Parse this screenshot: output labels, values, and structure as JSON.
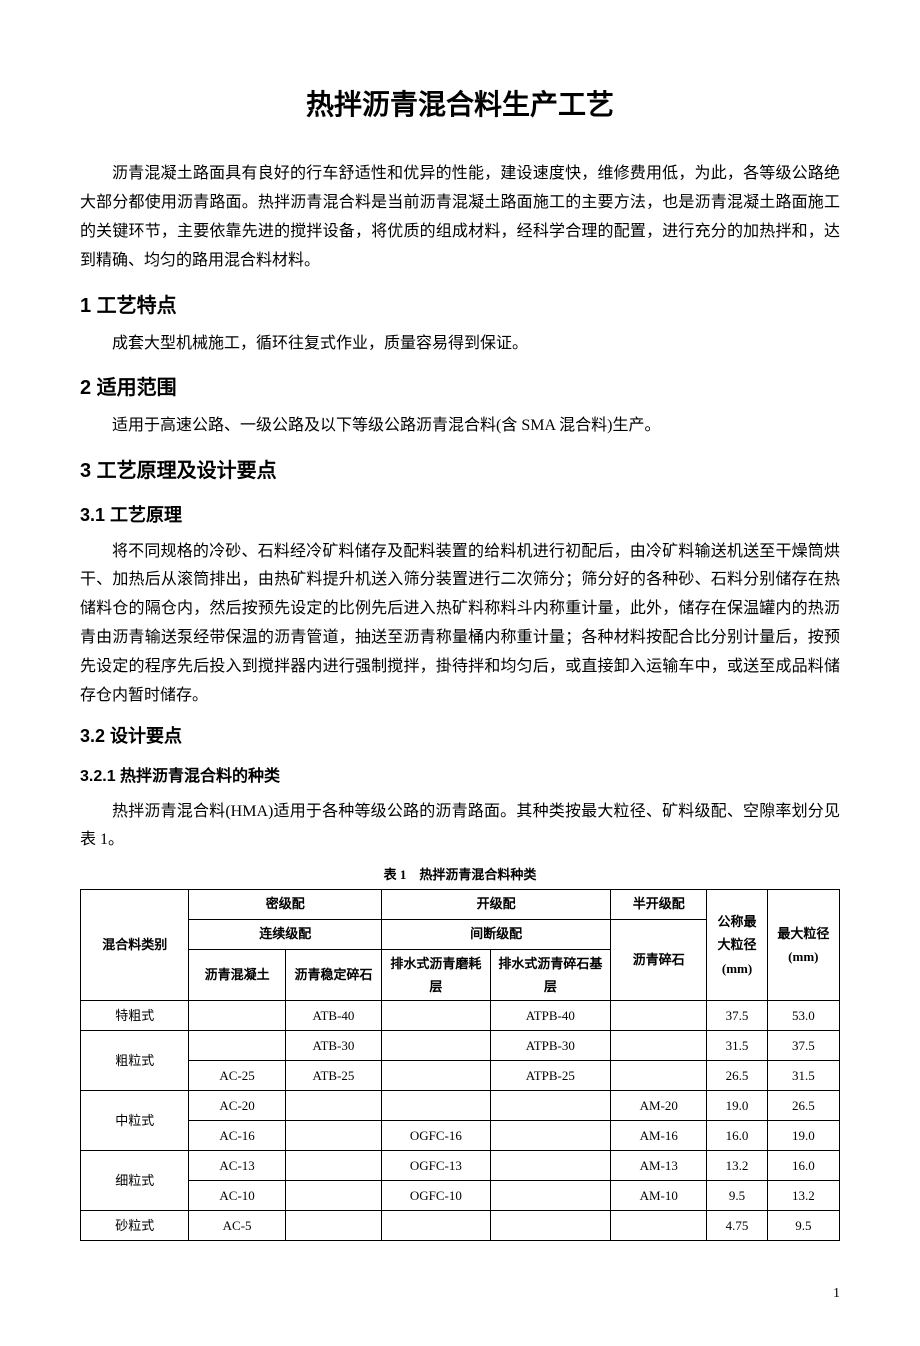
{
  "title": "热拌沥青混合料生产工艺",
  "intro": "沥青混凝土路面具有良好的行车舒适性和优异的性能，建设速度快，维修费用低，为此，各等级公路绝大部分都使用沥青路面。热拌沥青混合料是当前沥青混凝土路面施工的主要方法，也是沥青混凝土路面施工的关键环节，主要依靠先进的搅拌设备，将优质的组成材料，经科学合理的配置，进行充分的加热拌和，达到精确、均匀的路用混合料材料。",
  "s1": {
    "heading": "1 工艺特点",
    "body": "成套大型机械施工，循环往复式作业，质量容易得到保证。"
  },
  "s2": {
    "heading": "2 适用范围",
    "body": "适用于高速公路、一级公路及以下等级公路沥青混合料(含 SMA 混合料)生产。"
  },
  "s3": {
    "heading": "3 工艺原理及设计要点",
    "ss31": {
      "heading": "3.1 工艺原理",
      "body": "将不同规格的冷砂、石料经冷矿料储存及配料装置的给料机进行初配后，由冷矿料输送机送至干燥筒烘干、加热后从滚筒排出，由热矿料提升机送入筛分装置进行二次筛分；筛分好的各种砂、石料分别储存在热储料仓的隔仓内，然后按预先设定的比例先后进入热矿料称料斗内称重计量，此外，储存在保温罐内的热沥青由沥青输送泵经带保温的沥青管道，抽送至沥青称量桶内称重计量；各种材料按配合比分别计量后，按预先设定的程序先后投入到搅拌器内进行强制搅拌，掛待拌和均匀后，或直接卸入运输车中，或送至成品料储存仓内暂时储存。"
    },
    "ss32": {
      "heading": "3.2 设计要点",
      "sss321": {
        "heading": "3.2.1 热拌沥青混合料的种类",
        "body": "热拌沥青混合料(HMA)适用于各种等级公路的沥青路面。其种类按最大粒径、矿料级配、空隙率划分见表 1。"
      }
    }
  },
  "table1": {
    "caption": "表 1　热拌沥青混合料种类",
    "headers": {
      "type_col": "混合料类别",
      "dense": "密级配",
      "open": "开级配",
      "semi_open": "半开级配",
      "nominal": "公称最大粒径(mm)",
      "max_size": "最大粒径(mm)",
      "continuous": "连续级配",
      "gap": "间断级配",
      "ac": "沥青混凝土",
      "atb": "沥青稳定碎石",
      "ogfc": "排水式沥青磨耗层",
      "atpb": "排水式沥青碎石基层",
      "am": "沥青碎石"
    },
    "rows": [
      {
        "cat": "特粗式",
        "span": 1,
        "ac": "",
        "atb": "ATB-40",
        "ogfc": "",
        "atpb": "ATPB-40",
        "am": "",
        "nom": "37.5",
        "max": "53.0"
      },
      {
        "cat": "粗粒式",
        "span": 2,
        "sub": [
          {
            "ac": "",
            "atb": "ATB-30",
            "ogfc": "",
            "atpb": "ATPB-30",
            "am": "",
            "nom": "31.5",
            "max": "37.5"
          },
          {
            "ac": "AC-25",
            "atb": "ATB-25",
            "ogfc": "",
            "atpb": "ATPB-25",
            "am": "",
            "nom": "26.5",
            "max": "31.5"
          }
        ]
      },
      {
        "cat": "中粒式",
        "span": 2,
        "sub": [
          {
            "ac": "AC-20",
            "atb": "",
            "ogfc": "",
            "atpb": "",
            "am": "AM-20",
            "nom": "19.0",
            "max": "26.5"
          },
          {
            "ac": "AC-16",
            "atb": "",
            "ogfc": "OGFC-16",
            "atpb": "",
            "am": "AM-16",
            "nom": "16.0",
            "max": "19.0"
          }
        ]
      },
      {
        "cat": "细粒式",
        "span": 2,
        "sub": [
          {
            "ac": "AC-13",
            "atb": "",
            "ogfc": "OGFC-13",
            "atpb": "",
            "am": "AM-13",
            "nom": "13.2",
            "max": "16.0"
          },
          {
            "ac": "AC-10",
            "atb": "",
            "ogfc": "OGFC-10",
            "atpb": "",
            "am": "AM-10",
            "nom": "9.5",
            "max": "13.2"
          }
        ]
      },
      {
        "cat": "砂粒式",
        "span": 1,
        "ac": "AC-5",
        "atb": "",
        "ogfc": "",
        "atpb": "",
        "am": "",
        "nom": "4.75",
        "max": "9.5"
      }
    ]
  },
  "page_number": "1"
}
